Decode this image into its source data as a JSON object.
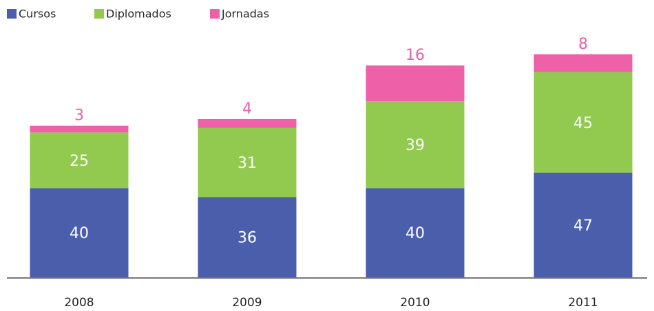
{
  "chart_data": {
    "type": "stacked-bar",
    "categories": [
      "2008",
      "2009",
      "2010",
      "2011"
    ],
    "series": [
      {
        "name": "Cursos",
        "color": "#4a5eab",
        "values": [
          40,
          36,
          40,
          47
        ]
      },
      {
        "name": "Diplomados",
        "color": "#92c94f",
        "values": [
          25,
          31,
          39,
          45
        ]
      },
      {
        "name": "Jornadas",
        "color": "#ee60a8",
        "values": [
          3,
          4,
          16,
          8
        ]
      }
    ]
  }
}
